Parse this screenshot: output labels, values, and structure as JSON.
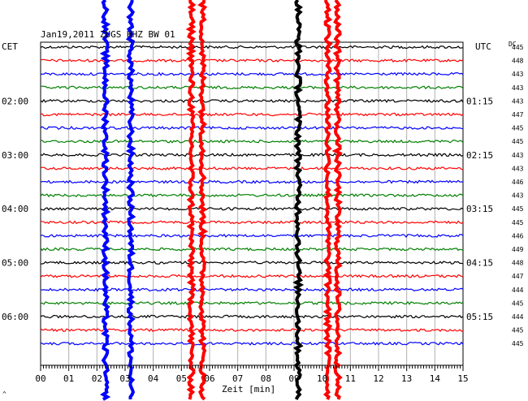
{
  "header": {
    "title": "Jan19,2011  ZUGS HHZ BW 01",
    "left_tz": "CET",
    "right_tz": "UTC",
    "dc_label": "DC"
  },
  "footer": {
    "xlabel": "Zeit [min]",
    "corner_mark": "^"
  },
  "chart_data": {
    "type": "line",
    "title": "Jan19,2011  ZUGS HHZ BW 01",
    "xlabel": "Zeit [min]",
    "ylabel": "",
    "xlim": [
      0,
      15
    ],
    "x_ticks": [
      "00",
      "01",
      "02",
      "03",
      "04",
      "05",
      "06",
      "07",
      "08",
      "09",
      "10",
      "11",
      "12",
      "13",
      "14",
      "15"
    ],
    "trace_interval_min": 15,
    "trace_colors": [
      "#000000",
      "#ff0000",
      "#0000ff",
      "#008000"
    ],
    "left_time_labels": [
      {
        "label": "02:00",
        "trace": 4
      },
      {
        "label": "03:00",
        "trace": 8
      },
      {
        "label": "04:00",
        "trace": 12
      },
      {
        "label": "05:00",
        "trace": 16
      },
      {
        "label": "06:00",
        "trace": 20
      }
    ],
    "right_time_labels": [
      {
        "label": "01:15",
        "trace": 4
      },
      {
        "label": "02:15",
        "trace": 8
      },
      {
        "label": "03:15",
        "trace": 12
      },
      {
        "label": "04:15",
        "trace": 16
      },
      {
        "label": "05:15",
        "trace": 20
      }
    ],
    "dc_offsets": [
      445,
      448,
      443,
      443,
      443,
      447,
      445,
      445,
      443,
      443,
      446,
      443,
      445,
      445,
      446,
      449,
      448,
      447,
      444,
      445,
      444,
      445,
      445
    ],
    "grid": true,
    "events": [
      {
        "x_min": 2.3,
        "color": "#0000ff"
      },
      {
        "x_min": 3.2,
        "color": "#0000ff"
      },
      {
        "x_min": 5.35,
        "color": "#ff0000"
      },
      {
        "x_min": 5.75,
        "color": "#ff0000"
      },
      {
        "x_min": 9.15,
        "color": "#000000"
      },
      {
        "x_min": 10.2,
        "color": "#ff0000"
      },
      {
        "x_min": 10.55,
        "color": "#ff0000"
      }
    ]
  }
}
